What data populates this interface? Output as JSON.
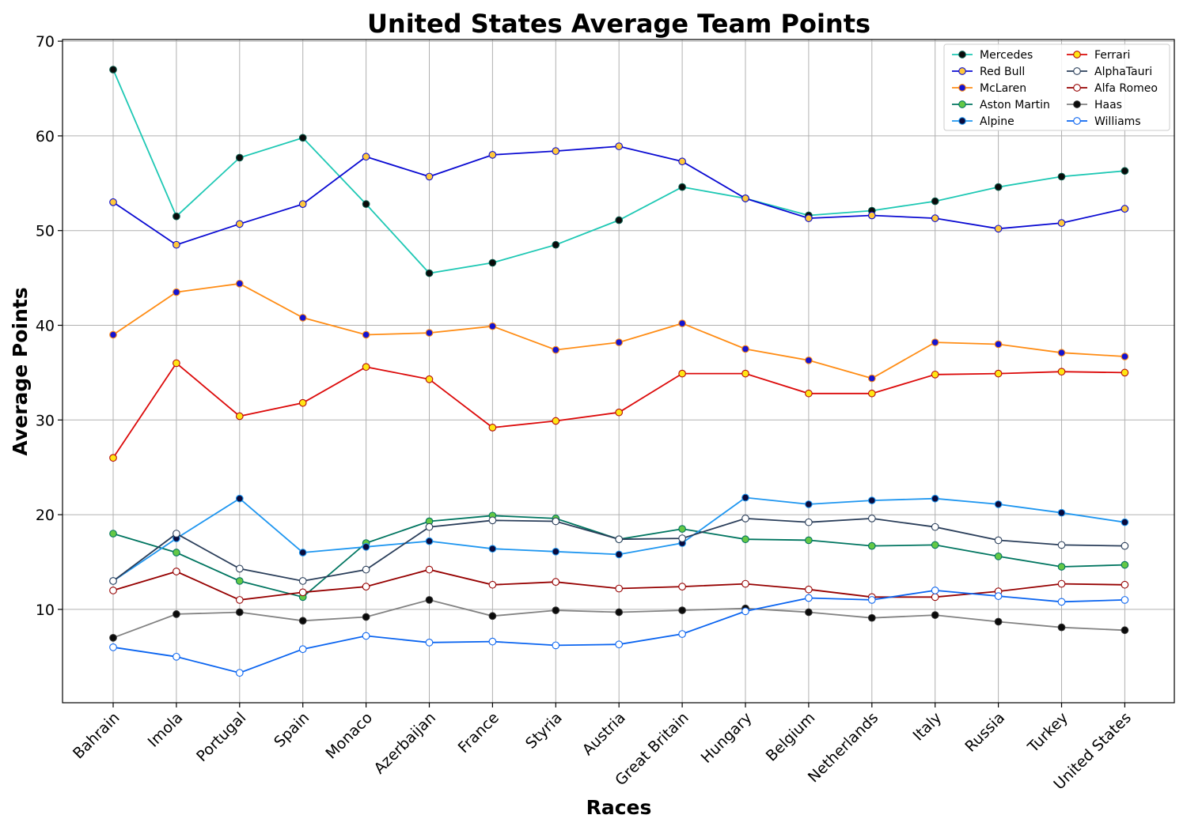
{
  "chart_data": {
    "type": "line",
    "title": "United States Average Team Points",
    "xlabel": "Races",
    "ylabel": "Average Points",
    "categories": [
      "Bahrain",
      "Imola",
      "Portugal",
      "Spain",
      "Monaco",
      "Azerbaijan",
      "France",
      "Styria",
      "Austria",
      "Great Britain",
      "Hungary",
      "Belgium",
      "Netherlands",
      "Italy",
      "Russia",
      "Turkey",
      "United States"
    ],
    "ylim": [
      0,
      70
    ],
    "yticks": [
      10,
      20,
      30,
      40,
      50,
      60,
      70
    ],
    "grid": true,
    "legend": {
      "placement": "top-right",
      "columns": 2
    },
    "series": [
      {
        "name": "Mercedes",
        "color": "#1ec8b4",
        "marker_fill": "#0a0a0a",
        "marker_edge": "#0a5a4a",
        "values": [
          67.0,
          51.5,
          57.7,
          59.8,
          52.8,
          45.5,
          46.6,
          48.5,
          51.1,
          54.6,
          53.4,
          51.6,
          52.1,
          53.1,
          54.6,
          55.7,
          56.3
        ]
      },
      {
        "name": "Red Bull",
        "color": "#0a0ad2",
        "marker_fill": "#ffc83c",
        "marker_edge": "#0a0ad2",
        "values": [
          53.0,
          48.5,
          50.7,
          52.8,
          57.8,
          55.7,
          58.0,
          58.4,
          58.9,
          57.3,
          53.4,
          51.3,
          51.6,
          51.3,
          50.2,
          50.8,
          52.3
        ]
      },
      {
        "name": "McLaren",
        "color": "#ff8c14",
        "marker_fill": "#1414d2",
        "marker_edge": "#ff8c14",
        "values": [
          39.0,
          43.5,
          44.4,
          40.8,
          39.0,
          39.2,
          39.9,
          37.4,
          38.2,
          40.2,
          37.5,
          36.3,
          34.4,
          38.2,
          38.0,
          37.1,
          36.7
        ]
      },
      {
        "name": "Aston Martin",
        "color": "#007560",
        "marker_fill": "#64c846",
        "marker_edge": "#007560",
        "values": [
          18.0,
          16.0,
          13.0,
          11.3,
          17.0,
          19.3,
          19.9,
          19.6,
          17.4,
          18.5,
          17.4,
          17.3,
          16.7,
          16.8,
          15.6,
          14.5,
          14.7
        ]
      },
      {
        "name": "Alpine",
        "color": "#1e96f0",
        "marker_fill": "#0a0a3c",
        "marker_edge": "#1e96f0",
        "values": [
          13.0,
          17.5,
          21.7,
          16.0,
          16.6,
          17.2,
          16.4,
          16.1,
          15.8,
          17.0,
          21.8,
          21.1,
          21.5,
          21.7,
          21.1,
          20.2,
          19.2
        ]
      },
      {
        "name": "Ferrari",
        "color": "#dc0a0a",
        "marker_fill": "#ffe614",
        "marker_edge": "#b40a0a",
        "values": [
          26.0,
          36.0,
          30.4,
          31.8,
          35.6,
          34.3,
          29.2,
          29.9,
          30.8,
          34.9,
          34.9,
          32.8,
          32.8,
          34.8,
          34.9,
          35.1,
          35.0
        ]
      },
      {
        "name": "AlphaTauri",
        "color": "#2a3e5a",
        "marker_fill": "#ffffff",
        "marker_edge": "#2a3e5a",
        "values": [
          13.0,
          18.0,
          14.3,
          13.0,
          14.2,
          18.7,
          19.4,
          19.3,
          17.4,
          17.5,
          19.6,
          19.2,
          19.6,
          18.7,
          17.3,
          16.8,
          16.7
        ]
      },
      {
        "name": "Alfa Romeo",
        "color": "#960000",
        "marker_fill": "#ffffff",
        "marker_edge": "#960000",
        "values": [
          12.0,
          14.0,
          11.0,
          11.8,
          12.4,
          14.2,
          12.6,
          12.9,
          12.2,
          12.4,
          12.7,
          12.1,
          11.3,
          11.3,
          11.9,
          12.7,
          12.6
        ]
      },
      {
        "name": "Haas",
        "color": "#828282",
        "marker_fill": "#0a0a0a",
        "marker_edge": "#323232",
        "values": [
          7.0,
          9.5,
          9.7,
          8.8,
          9.2,
          11.0,
          9.3,
          9.9,
          9.7,
          9.9,
          10.1,
          9.7,
          9.1,
          9.4,
          8.7,
          8.1,
          7.8
        ]
      },
      {
        "name": "Williams",
        "color": "#0a64f0",
        "marker_fill": "#ffffff",
        "marker_edge": "#0a64f0",
        "values": [
          6.0,
          5.0,
          3.3,
          5.8,
          7.2,
          6.5,
          6.6,
          6.2,
          6.3,
          7.4,
          9.8,
          11.2,
          11.0,
          12.0,
          11.4,
          10.8,
          11.0
        ]
      }
    ]
  }
}
